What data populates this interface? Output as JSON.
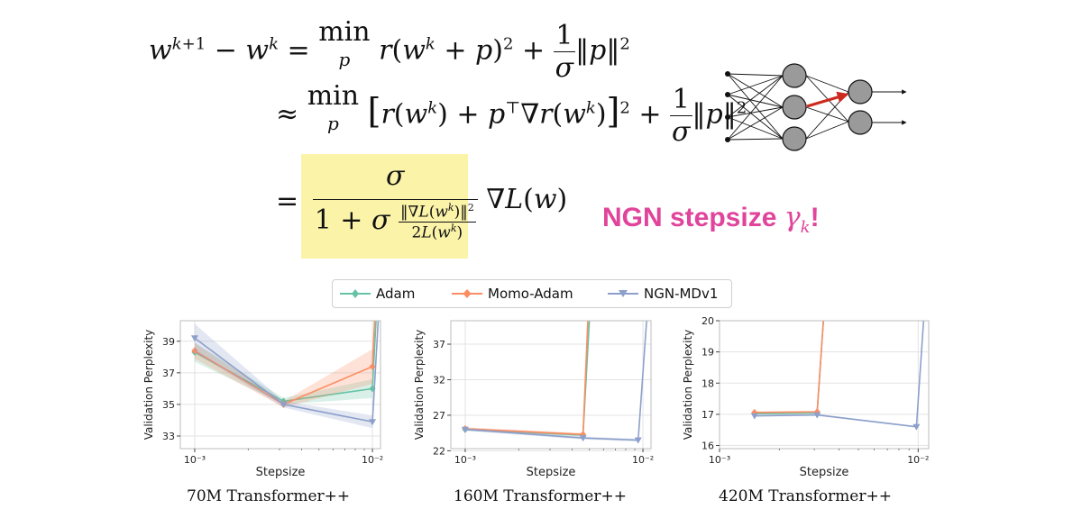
{
  "equations": {
    "line1": "wᵏ⁺¹ − wᵏ = min r(wᵏ + p)² + (1/σ)‖p‖²",
    "line2": "≈ min [r(wᵏ) + pᵀ∇r(wᵏ)]² + (1/σ)‖p‖²",
    "line3": "= σ / (1 + σ‖∇L(wᵏ)‖²/2L(wᵏ)) ∇L(w)",
    "min_sub": "p"
  },
  "ngn_label": {
    "text": "NGN stepsize ",
    "symbol": "γ",
    "subscript": "k",
    "suffix": "!",
    "color": "#e0449b"
  },
  "highlight_color": "#fbf3a8",
  "legend": {
    "items": [
      {
        "label": "Adam",
        "color": "#66c2a5",
        "marker": "diamond"
      },
      {
        "label": "Momo-Adam",
        "color": "#fc8d62",
        "marker": "diamond"
      },
      {
        "label": "NGN-MDv1",
        "color": "#8da0cb",
        "marker": "triangle-down"
      }
    ]
  },
  "chart_data": [
    {
      "type": "line",
      "caption": "70M Transformer++",
      "xlabel": "Stepsize",
      "ylabel": "Validation Perplexity",
      "xscale": "log",
      "xlim": [
        0.00083,
        0.0111
      ],
      "ylim": [
        32.2,
        40.3
      ],
      "xticks": [
        {
          "v": 0.001,
          "label": "10⁻³"
        },
        {
          "v": 0.01,
          "label": "10⁻²"
        }
      ],
      "yticks": [
        {
          "v": 33,
          "label": "33"
        },
        {
          "v": 35,
          "label": "35"
        },
        {
          "v": 37,
          "label": "37"
        },
        {
          "v": 39,
          "label": "39"
        }
      ],
      "grid": true,
      "series": [
        {
          "name": "Adam",
          "x": [
            0.001,
            0.00316,
            0.01,
            0.0105
          ],
          "y": [
            38.3,
            35.2,
            36.0,
            40.5
          ],
          "band": [
            0.6,
            0.2,
            0.6,
            0.0
          ]
        },
        {
          "name": "Momo-Adam",
          "x": [
            0.001,
            0.00316,
            0.01,
            0.0103
          ],
          "y": [
            38.4,
            35.0,
            37.4,
            40.5
          ],
          "band": [
            0.5,
            0.2,
            1.1,
            0.0
          ]
        },
        {
          "name": "NGN-MDv1",
          "x": [
            0.001,
            0.00316,
            0.01,
            0.0108
          ],
          "y": [
            39.2,
            35.0,
            33.9,
            40.5
          ],
          "band": [
            0.9,
            0.2,
            0.4,
            0.0
          ]
        }
      ]
    },
    {
      "type": "line",
      "caption": "160M Transformer++",
      "xlabel": "Stepsize",
      "ylabel": "Validation Perplexity",
      "xscale": "log",
      "xlim": [
        0.00083,
        0.0111
      ],
      "ylim": [
        22.3,
        40.3
      ],
      "xticks": [
        {
          "v": 0.001,
          "label": "10⁻³"
        },
        {
          "v": 0.01,
          "label": "10⁻²"
        }
      ],
      "yticks": [
        {
          "v": 22,
          "label": "22"
        },
        {
          "v": 27,
          "label": "27"
        },
        {
          "v": 32,
          "label": "32"
        },
        {
          "v": 37,
          "label": "37"
        }
      ],
      "grid": true,
      "series": [
        {
          "name": "Adam",
          "x": [
            0.001,
            0.0046,
            0.005
          ],
          "y": [
            25.0,
            24.2,
            40.5
          ],
          "band": [
            0.2,
            0.2,
            0.0
          ]
        },
        {
          "name": "Momo-Adam",
          "x": [
            0.001,
            0.0046,
            0.0049
          ],
          "y": [
            25.1,
            24.3,
            40.5
          ],
          "band": [
            0.2,
            0.2,
            0.0
          ]
        },
        {
          "name": "NGN-MDv1",
          "x": [
            0.001,
            0.0046,
            0.0094,
            0.0105
          ],
          "y": [
            25.0,
            23.8,
            23.5,
            40.5
          ],
          "band": [
            0.2,
            0.2,
            0.2,
            0.0
          ]
        }
      ]
    },
    {
      "type": "line",
      "caption": "420M Transformer++",
      "xlabel": "Stepsize",
      "ylabel": "Validation Perplexity",
      "xscale": "log",
      "xlim": [
        0.001,
        0.0113
      ],
      "ylim": [
        15.9,
        20.0
      ],
      "xticks": [
        {
          "v": 0.001,
          "label": "10⁻³"
        },
        {
          "v": 0.01,
          "label": "10⁻²"
        }
      ],
      "yticks": [
        {
          "v": 16,
          "label": "16"
        },
        {
          "v": 17,
          "label": "17"
        },
        {
          "v": 18,
          "label": "18"
        },
        {
          "v": 19,
          "label": "19"
        },
        {
          "v": 20,
          "label": "20"
        }
      ],
      "grid": true,
      "series": [
        {
          "name": "Adam",
          "x": [
            0.0015,
            0.0031,
            0.00335
          ],
          "y": [
            17.02,
            17.05,
            20.2
          ],
          "band": [
            0.03,
            0.03,
            0.0
          ]
        },
        {
          "name": "Momo-Adam",
          "x": [
            0.0015,
            0.0031,
            0.00335
          ],
          "y": [
            17.06,
            17.08,
            20.2
          ],
          "band": [
            0.03,
            0.03,
            0.0
          ]
        },
        {
          "name": "NGN-MDv1",
          "x": [
            0.0015,
            0.0031,
            0.0098,
            0.0107
          ],
          "y": [
            16.95,
            16.98,
            16.6,
            20.2
          ],
          "band": [
            0.03,
            0.03,
            0.03,
            0.0
          ]
        }
      ]
    }
  ]
}
